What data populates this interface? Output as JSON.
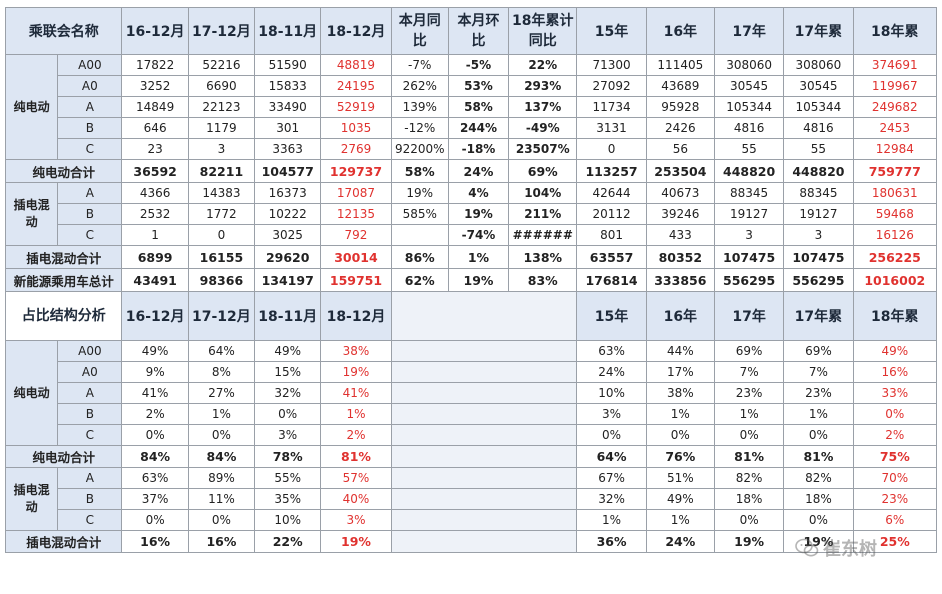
{
  "header": {
    "name_col": "乘联会名称",
    "cols": [
      "16-12月",
      "17-12月",
      "18-11月",
      "18-12月",
      "本月同比",
      "本月环比",
      "18年累计同比",
      "15年",
      "16年",
      "17年",
      "17年累",
      "18年累"
    ]
  },
  "sales": {
    "ev_group": "纯电动",
    "ev_rows": [
      {
        "cls": "A00",
        "v": [
          "17822",
          "52216",
          "51590",
          "48819",
          "-7%",
          "-5%",
          "22%",
          "71300",
          "111405",
          "308060",
          "308060",
          "374691"
        ]
      },
      {
        "cls": "A0",
        "v": [
          "3252",
          "6690",
          "15833",
          "24195",
          "262%",
          "53%",
          "293%",
          "27092",
          "43689",
          "30545",
          "30545",
          "119967"
        ]
      },
      {
        "cls": "A",
        "v": [
          "14849",
          "22123",
          "33490",
          "52919",
          "139%",
          "58%",
          "137%",
          "11734",
          "95928",
          "105344",
          "105344",
          "249682"
        ]
      },
      {
        "cls": "B",
        "v": [
          "646",
          "1179",
          "301",
          "1035",
          "-12%",
          "244%",
          "-49%",
          "3131",
          "2426",
          "4816",
          "4816",
          "2453"
        ]
      },
      {
        "cls": "C",
        "v": [
          "23",
          "3",
          "3363",
          "2769",
          "92200%",
          "-18%",
          "23507%",
          "0",
          "56",
          "55",
          "55",
          "12984"
        ]
      }
    ],
    "ev_total": {
      "label": "纯电动合计",
      "v": [
        "36592",
        "82211",
        "104577",
        "129737",
        "58%",
        "24%",
        "69%",
        "113257",
        "253504",
        "448820",
        "448820",
        "759777"
      ]
    },
    "phev_group": "插电混动",
    "phev_rows": [
      {
        "cls": "A",
        "v": [
          "4366",
          "14383",
          "16373",
          "17087",
          "19%",
          "4%",
          "104%",
          "42644",
          "40673",
          "88345",
          "88345",
          "180631"
        ]
      },
      {
        "cls": "B",
        "v": [
          "2532",
          "1772",
          "10222",
          "12135",
          "585%",
          "19%",
          "211%",
          "20112",
          "39246",
          "19127",
          "19127",
          "59468"
        ]
      },
      {
        "cls": "C",
        "v": [
          "1",
          "0",
          "3025",
          "792",
          "",
          "-74%",
          "######",
          "801",
          "433",
          "3",
          "3",
          "16126"
        ]
      }
    ],
    "phev_total": {
      "label": "插电混动合计",
      "v": [
        "6899",
        "16155",
        "29620",
        "30014",
        "86%",
        "1%",
        "138%",
        "63557",
        "80352",
        "107475",
        "107475",
        "256225"
      ]
    },
    "nev_total": {
      "label": "新能源乘用车总计",
      "v": [
        "43491",
        "98366",
        "134197",
        "159751",
        "62%",
        "19%",
        "83%",
        "176814",
        "333856",
        "556295",
        "556295",
        "1016002"
      ]
    }
  },
  "structure": {
    "title": "占比结构分析",
    "cols": [
      "16-12月",
      "17-12月",
      "18-11月",
      "18-12月",
      "15年",
      "16年",
      "17年",
      "17年累",
      "18年累"
    ],
    "ev_group": "纯电动",
    "ev_rows": [
      {
        "cls": "A00",
        "v": [
          "49%",
          "64%",
          "49%",
          "38%",
          "63%",
          "44%",
          "69%",
          "69%",
          "49%"
        ]
      },
      {
        "cls": "A0",
        "v": [
          "9%",
          "8%",
          "15%",
          "19%",
          "24%",
          "17%",
          "7%",
          "7%",
          "16%"
        ]
      },
      {
        "cls": "A",
        "v": [
          "41%",
          "27%",
          "32%",
          "41%",
          "10%",
          "38%",
          "23%",
          "23%",
          "33%"
        ]
      },
      {
        "cls": "B",
        "v": [
          "2%",
          "1%",
          "0%",
          "1%",
          "3%",
          "1%",
          "1%",
          "1%",
          "0%"
        ]
      },
      {
        "cls": "C",
        "v": [
          "0%",
          "0%",
          "3%",
          "2%",
          "0%",
          "0%",
          "0%",
          "0%",
          "2%"
        ]
      }
    ],
    "ev_total": {
      "label": "纯电动合计",
      "v": [
        "84%",
        "84%",
        "78%",
        "81%",
        "64%",
        "76%",
        "81%",
        "81%",
        "75%"
      ]
    },
    "phev_group": "插电混动",
    "phev_rows": [
      {
        "cls": "A",
        "v": [
          "63%",
          "89%",
          "55%",
          "57%",
          "67%",
          "51%",
          "82%",
          "82%",
          "70%"
        ]
      },
      {
        "cls": "B",
        "v": [
          "37%",
          "11%",
          "35%",
          "40%",
          "32%",
          "49%",
          "18%",
          "18%",
          "23%"
        ]
      },
      {
        "cls": "C",
        "v": [
          "0%",
          "0%",
          "10%",
          "3%",
          "1%",
          "1%",
          "0%",
          "0%",
          "6%"
        ]
      }
    ],
    "phev_total": {
      "label": "插电混动合计",
      "v": [
        "16%",
        "16%",
        "22%",
        "19%",
        "36%",
        "24%",
        "19%",
        "19%",
        "25%"
      ]
    }
  },
  "watermark": {
    "text": "崔东树",
    "icon": "wechat-icon"
  },
  "colors": {
    "header_bg": "#dde6f3",
    "highlight": "#e0322f",
    "grid": "#9aa0a8"
  }
}
